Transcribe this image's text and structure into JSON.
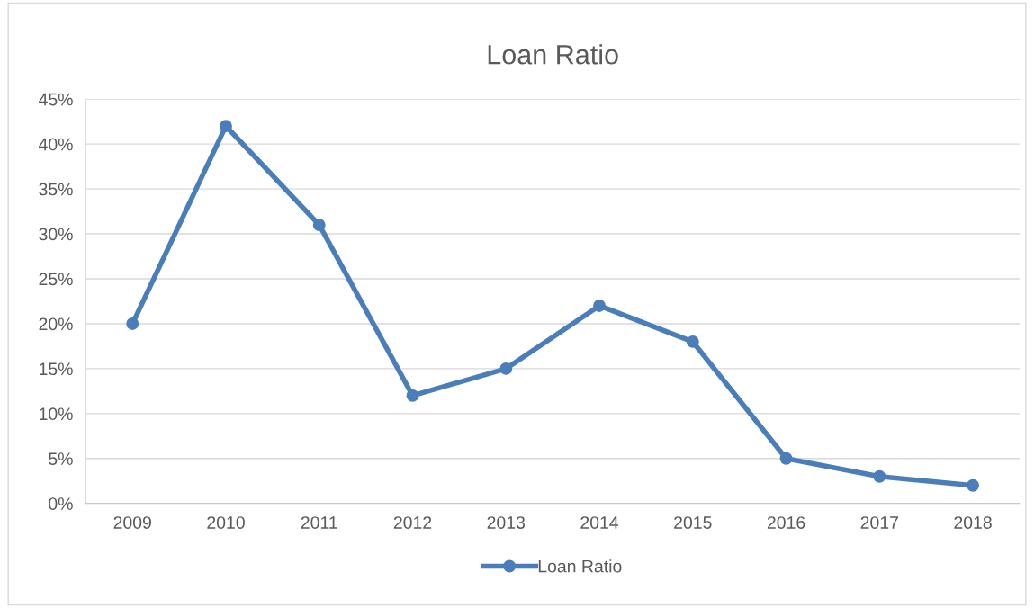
{
  "chart_data": {
    "type": "line",
    "title": "Loan Ratio",
    "categories": [
      "2009",
      "2010",
      "2011",
      "2012",
      "2013",
      "2014",
      "2015",
      "2016",
      "2017",
      "2018"
    ],
    "series": [
      {
        "name": "Loan Ratio",
        "color": "#4a7ebb",
        "values": [
          20,
          42,
          31,
          12,
          15,
          22,
          18,
          5,
          3,
          2
        ]
      }
    ],
    "ylim": [
      0,
      45
    ],
    "yticks": [
      {
        "value": 0,
        "label": "0%"
      },
      {
        "value": 5,
        "label": "5%"
      },
      {
        "value": 10,
        "label": "10%"
      },
      {
        "value": 15,
        "label": "15%"
      },
      {
        "value": 20,
        "label": "20%"
      },
      {
        "value": 25,
        "label": "25%"
      },
      {
        "value": 30,
        "label": "30%"
      },
      {
        "value": 35,
        "label": "35%"
      },
      {
        "value": 40,
        "label": "40%"
      },
      {
        "value": 45,
        "label": "45%"
      }
    ],
    "grid": "y",
    "legend": "bottom",
    "marker": "circle",
    "line_style": "solid"
  }
}
